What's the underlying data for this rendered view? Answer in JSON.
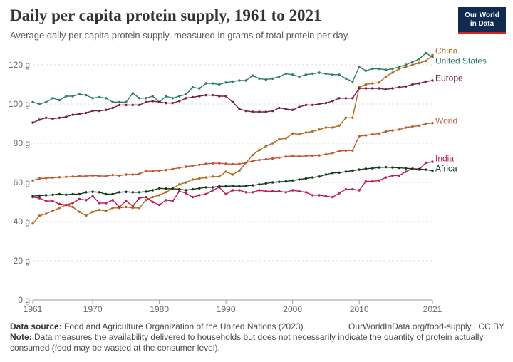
{
  "header": {
    "title": "Daily per capita protein supply, 1961 to 2021",
    "subtitle": "Average daily per capita protein supply, measured in grams of total protein per day.",
    "logo_line1": "Our World",
    "logo_line2": "in Data"
  },
  "footer": {
    "source_label": "Data source:",
    "source_text": "Food and Agriculture Organization of the United Nations (2023)",
    "url": "OurWorldInData.org/food-supply | CC BY",
    "note_label": "Note:",
    "note_text": "Data measures the availability delivered to households but does not necessarily indicate the quantity of protein actually consumed (food may be wasted at the consumer level)."
  },
  "chart_data": {
    "type": "line",
    "title": "Daily per capita protein supply, 1961 to 2021",
    "ylim": [
      0,
      120
    ],
    "xlim": [
      1961,
      2021
    ],
    "y_ticks": [
      0,
      20,
      40,
      60,
      80,
      100,
      120
    ],
    "y_tick_labels": [
      "0 g",
      "20 g",
      "40 g",
      "60 g",
      "80 g",
      "100 g",
      "120 g"
    ],
    "x_ticks": [
      1961,
      1970,
      1980,
      1990,
      2000,
      2010,
      2021
    ],
    "x_tick_labels": [
      "1961",
      "1970",
      "1980",
      "1990",
      "2000",
      "2010",
      "2021"
    ],
    "grid": "horizontal dashed",
    "legend": "right end labels",
    "series": [
      {
        "name": "China",
        "color": "#b4661a",
        "years": [
          1961,
          1962,
          1963,
          1964,
          1965,
          1966,
          1967,
          1968,
          1969,
          1970,
          1971,
          1972,
          1973,
          1974,
          1975,
          1976,
          1977,
          1978,
          1979,
          1980,
          1981,
          1982,
          1983,
          1984,
          1985,
          1986,
          1987,
          1988,
          1989,
          1990,
          1991,
          1992,
          1993,
          1994,
          1995,
          1996,
          1997,
          1998,
          1999,
          2000,
          2001,
          2002,
          2003,
          2004,
          2005,
          2006,
          2007,
          2008,
          2009,
          2010,
          2011,
          2012,
          2013,
          2014,
          2015,
          2016,
          2017,
          2018,
          2019,
          2020,
          2021
        ],
        "values": [
          39,
          43,
          44,
          45.5,
          47,
          48.5,
          47.5,
          45,
          43,
          45,
          46,
          45.5,
          47,
          47,
          47.5,
          47,
          47,
          51,
          52.5,
          53.5,
          55,
          57,
          59,
          60,
          61.5,
          62,
          62.5,
          63,
          63,
          65.5,
          64,
          66,
          70,
          74,
          76.5,
          78.5,
          80,
          82,
          82.5,
          85,
          84.5,
          85.5,
          86,
          87,
          88,
          88,
          89,
          93,
          93,
          108.5,
          110,
          110.5,
          111,
          114,
          116,
          118,
          119,
          120,
          121,
          122,
          125
        ]
      },
      {
        "name": "United States",
        "color": "#2d7f5e",
        "years": [
          1961,
          1962,
          1963,
          1964,
          1965,
          1966,
          1967,
          1968,
          1969,
          1970,
          1971,
          1972,
          1973,
          1974,
          1975,
          1976,
          1977,
          1978,
          1979,
          1980,
          1981,
          1982,
          1983,
          1984,
          1985,
          1986,
          1987,
          1988,
          1989,
          1990,
          1991,
          1992,
          1993,
          1994,
          1995,
          1996,
          1997,
          1998,
          1999,
          2000,
          2001,
          2002,
          2003,
          2004,
          2005,
          2006,
          2007,
          2008,
          2009,
          2010,
          2011,
          2012,
          2013,
          2014,
          2015,
          2016,
          2017,
          2018,
          2019,
          2020,
          2021
        ],
        "values": [
          101,
          100,
          101,
          103,
          102,
          104,
          104,
          105,
          104.5,
          103,
          103.5,
          103,
          101,
          101,
          101,
          105.5,
          103,
          103,
          104,
          101,
          104,
          103,
          104,
          105,
          108.5,
          108,
          110.5,
          110.5,
          110,
          111,
          111.5,
          112,
          112,
          114.5,
          113,
          112.5,
          113,
          114,
          115.5,
          115,
          114,
          115,
          115.5,
          116,
          115.5,
          115,
          115,
          113,
          111.5,
          119,
          117,
          118,
          118,
          117.5,
          118,
          119,
          120,
          121.5,
          123,
          126,
          124
        ]
      },
      {
        "name": "Europe",
        "color": "#7a1f3d",
        "years": [
          1961,
          1962,
          1963,
          1964,
          1965,
          1966,
          1967,
          1968,
          1969,
          1970,
          1971,
          1972,
          1973,
          1974,
          1975,
          1976,
          1977,
          1978,
          1979,
          1980,
          1981,
          1982,
          1983,
          1984,
          1985,
          1986,
          1987,
          1988,
          1989,
          1990,
          1991,
          1992,
          1993,
          1994,
          1995,
          1996,
          1997,
          1998,
          1999,
          2000,
          2001,
          2002,
          2003,
          2004,
          2005,
          2006,
          2007,
          2008,
          2009,
          2010,
          2011,
          2012,
          2013,
          2014,
          2015,
          2016,
          2017,
          2018,
          2019,
          2020,
          2021
        ],
        "values": [
          90.5,
          92,
          93,
          92.5,
          93,
          93.5,
          94.5,
          95,
          95.5,
          96.5,
          96.5,
          97,
          98,
          99.5,
          99.5,
          99.5,
          99.5,
          101,
          101.5,
          101,
          100.5,
          100.5,
          101.5,
          103,
          103.5,
          104,
          104.5,
          104.5,
          104,
          104,
          101,
          97.5,
          96.5,
          96,
          96,
          96,
          96.5,
          98,
          97.5,
          97,
          98.5,
          99.5,
          99.5,
          100,
          100.5,
          101.5,
          103,
          103,
          103,
          108,
          108,
          108,
          108,
          107.5,
          108,
          108.5,
          109,
          110,
          110.5,
          111.5,
          112
        ]
      },
      {
        "name": "World",
        "color": "#c05731",
        "years": [
          1961,
          1962,
          1963,
          1964,
          1965,
          1966,
          1967,
          1968,
          1969,
          1970,
          1971,
          1972,
          1973,
          1974,
          1975,
          1976,
          1977,
          1978,
          1979,
          1980,
          1981,
          1982,
          1983,
          1984,
          1985,
          1986,
          1987,
          1988,
          1989,
          1990,
          1991,
          1992,
          1993,
          1994,
          1995,
          1996,
          1997,
          1998,
          1999,
          2000,
          2001,
          2002,
          2003,
          2004,
          2005,
          2006,
          2007,
          2008,
          2009,
          2010,
          2011,
          2012,
          2013,
          2014,
          2015,
          2016,
          2017,
          2018,
          2019,
          2020,
          2021
        ],
        "values": [
          61,
          62,
          62.2,
          62.4,
          62.6,
          62.8,
          63,
          63.2,
          63.2,
          63.5,
          63.3,
          63.2,
          63.8,
          63.5,
          64,
          64,
          64.3,
          65.8,
          65.8,
          66,
          66.3,
          66.8,
          67.5,
          68,
          68.5,
          69,
          69.5,
          69.7,
          69.8,
          69.5,
          69.3,
          69.4,
          70,
          71,
          71.4,
          71.8,
          72.2,
          72.6,
          73.2,
          73.5,
          73.3,
          73.5,
          73.6,
          73.8,
          74.3,
          75,
          76,
          76.2,
          76.3,
          83.6,
          84,
          84.5,
          85,
          86,
          86.5,
          87,
          88,
          88.5,
          89,
          90,
          90.3
        ]
      },
      {
        "name": "India",
        "color": "#c2185b",
        "years": [
          1961,
          1962,
          1963,
          1964,
          1965,
          1966,
          1967,
          1968,
          1969,
          1970,
          1971,
          1972,
          1973,
          1974,
          1975,
          1976,
          1977,
          1978,
          1979,
          1980,
          1981,
          1982,
          1983,
          1984,
          1985,
          1986,
          1987,
          1988,
          1989,
          1990,
          1991,
          1992,
          1993,
          1994,
          1995,
          1996,
          1997,
          1998,
          1999,
          2000,
          2001,
          2002,
          2003,
          2004,
          2005,
          2006,
          2007,
          2008,
          2009,
          2010,
          2011,
          2012,
          2013,
          2014,
          2015,
          2016,
          2017,
          2018,
          2019,
          2020,
          2021
        ],
        "values": [
          52.5,
          52,
          50.5,
          50.5,
          49,
          48.5,
          49.5,
          51.5,
          51,
          53,
          49.5,
          49.5,
          51,
          47.5,
          50.5,
          48,
          52,
          52.5,
          50,
          48.5,
          51,
          50.5,
          55.5,
          54.5,
          52.5,
          53.5,
          54,
          56,
          57.5,
          54,
          56,
          56,
          55,
          55,
          56,
          55.5,
          55.5,
          55.5,
          55,
          56,
          55.5,
          55,
          53.5,
          53.5,
          53,
          52.5,
          54.5,
          56.5,
          56.5,
          56,
          60.5,
          60.5,
          61,
          62.5,
          63.5,
          63.5,
          65.5,
          67,
          66.5,
          70,
          70.5
        ]
      },
      {
        "name": "Africa",
        "color": "#0f3b18",
        "years": [
          1961,
          1962,
          1963,
          1964,
          1965,
          1966,
          1967,
          1968,
          1969,
          1970,
          1971,
          1972,
          1973,
          1974,
          1975,
          1976,
          1977,
          1978,
          1979,
          1980,
          1981,
          1982,
          1983,
          1984,
          1985,
          1986,
          1987,
          1988,
          1989,
          1990,
          1991,
          1992,
          1993,
          1994,
          1995,
          1996,
          1997,
          1998,
          1999,
          2000,
          2001,
          2002,
          2003,
          2004,
          2005,
          2006,
          2007,
          2008,
          2009,
          2010,
          2011,
          2012,
          2013,
          2014,
          2015,
          2016,
          2017,
          2018,
          2019,
          2020,
          2021
        ],
        "values": [
          53,
          53.3,
          53.5,
          53.7,
          54,
          53.7,
          54,
          54,
          55,
          55.2,
          55,
          54,
          54,
          55,
          55.2,
          55,
          55,
          55.3,
          56,
          57,
          56.8,
          56.8,
          56.5,
          56,
          56.5,
          57,
          57.5,
          57.5,
          58,
          58,
          58.2,
          58,
          58.2,
          58.5,
          59,
          59.5,
          60,
          60.3,
          60.5,
          61,
          61.5,
          62,
          62.5,
          63,
          64,
          64.8,
          65,
          65.5,
          66,
          66.5,
          67,
          67.2,
          67.6,
          67.8,
          67.6,
          67.4,
          67.2,
          67,
          66.8,
          66.5,
          66
        ]
      }
    ]
  }
}
